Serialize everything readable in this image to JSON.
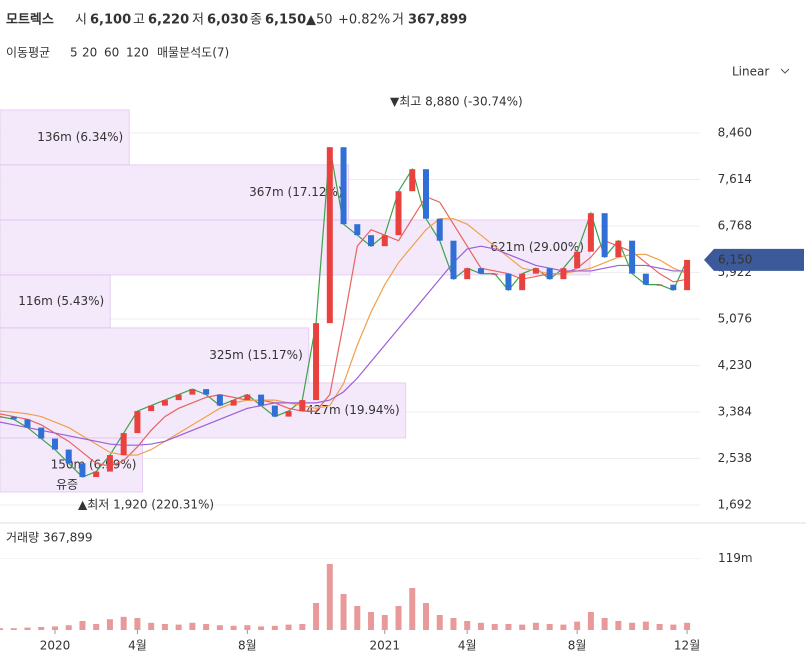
{
  "header": {
    "name": "모트렉스",
    "open_label": "시",
    "open": "6,100",
    "high_label": "고",
    "high": "6,220",
    "low_label": "저",
    "low": "6,030",
    "close_label": "종",
    "close": "6,150",
    "change": "▲50",
    "change_pct": "+0.82%",
    "volume_label": "거",
    "volume": "367,899",
    "ma_label": "이동평균",
    "profile_label": "매물분석도(7)",
    "scale_mode": "Linear"
  },
  "chart_data": [
    {
      "type": "candlestick",
      "x": [
        -2,
        -1.5,
        -1,
        -0.5,
        0,
        0.5,
        1,
        1.5,
        2,
        2.5,
        3,
        3.5,
        4,
        4.5,
        5,
        5.5,
        6,
        6.5,
        7,
        7.5,
        8,
        8.5,
        9,
        9.5,
        10,
        10.5,
        11,
        11.5,
        12,
        12.5,
        13,
        13.5,
        14,
        14.5,
        15,
        15.5,
        16,
        16.5,
        17,
        17.5,
        18,
        18.5,
        19,
        19.5,
        20,
        20.5,
        21,
        21.5,
        22,
        22.5,
        23
      ],
      "close": [
        3300,
        3250,
        3100,
        2900,
        2700,
        2450,
        2200,
        2300,
        2600,
        3000,
        3400,
        3500,
        3600,
        3700,
        3800,
        3700,
        3500,
        3600,
        3700,
        3500,
        3300,
        3400,
        3600,
        5000,
        8200,
        6800,
        6600,
        6400,
        6600,
        7400,
        7800,
        6900,
        6500,
        5800,
        6000,
        5900,
        5900,
        5600,
        5900,
        6000,
        5800,
        6000,
        6300,
        7000,
        6200,
        6500,
        5900,
        5700,
        5700,
        5600,
        6150
      ],
      "up_color": "#e8413e",
      "down_color": "#2f6fd6",
      "series": [
        {
          "name": "5",
          "color": "#3ca34a",
          "values": [
            3300,
            3250,
            3100,
            2900,
            2700,
            2450,
            2200,
            2300,
            2600,
            3000,
            3400,
            3500,
            3600,
            3700,
            3800,
            3700,
            3500,
            3600,
            3700,
            3500,
            3300,
            3400,
            3600,
            5000,
            8200,
            6800,
            6600,
            6400,
            6600,
            7400,
            7800,
            6900,
            6500,
            5800,
            6000,
            5900,
            5900,
            5600,
            5900,
            6000,
            5800,
            6000,
            6300,
            7000,
            6200,
            6500,
            5900,
            5700,
            5700,
            5600,
            6150
          ]
        },
        {
          "name": "20",
          "color": "#e8635d",
          "values": [
            3350,
            3300,
            3250,
            3150,
            3000,
            2850,
            2650,
            2450,
            2400,
            2500,
            2750,
            3050,
            3300,
            3450,
            3550,
            3650,
            3700,
            3650,
            3600,
            3600,
            3550,
            3450,
            3400,
            3400,
            3700,
            5000,
            6400,
            6700,
            6600,
            6500,
            6900,
            7300,
            7200,
            6800,
            6400,
            6000,
            5950,
            5900,
            5800,
            5850,
            5900,
            5900,
            6000,
            6200,
            6500,
            6400,
            6300,
            6100,
            5900,
            5750,
            5800
          ]
        },
        {
          "name": "60",
          "color": "#f0a04b",
          "values": [
            3400,
            3380,
            3350,
            3300,
            3200,
            3100,
            2950,
            2800,
            2650,
            2600,
            2600,
            2700,
            2850,
            3000,
            3150,
            3300,
            3450,
            3550,
            3600,
            3600,
            3600,
            3550,
            3500,
            3450,
            3500,
            3900,
            4600,
            5200,
            5700,
            6100,
            6400,
            6700,
            6900,
            6900,
            6800,
            6600,
            6400,
            6200,
            6000,
            5950,
            5900,
            5900,
            5950,
            6000,
            6100,
            6200,
            6250,
            6250,
            6150,
            6000,
            5900
          ]
        },
        {
          "name": "120",
          "color": "#9b5fd8",
          "values": [
            3200,
            3150,
            3100,
            3050,
            3000,
            2950,
            2900,
            2850,
            2800,
            2780,
            2780,
            2800,
            2850,
            2950,
            3050,
            3150,
            3250,
            3350,
            3450,
            3500,
            3550,
            3550,
            3550,
            3550,
            3600,
            3750,
            4000,
            4300,
            4600,
            4900,
            5200,
            5500,
            5800,
            6100,
            6350,
            6400,
            6350,
            6250,
            6150,
            6050,
            6000,
            5950,
            5950,
            5950,
            6000,
            6050,
            6050,
            6050,
            6000,
            5950,
            5950
          ]
        }
      ],
      "ylim": [
        1510,
        9150
      ],
      "yticks": [
        {
          "value": 1692,
          "label": "1,692"
        },
        {
          "value": 2538,
          "label": "2,538"
        },
        {
          "value": 3384,
          "label": "3,384"
        },
        {
          "value": 4230,
          "label": "4,230"
        },
        {
          "value": 5076,
          "label": "5,076"
        },
        {
          "value": 5922,
          "label": "5,922"
        },
        {
          "value": 6768,
          "label": "6,768"
        },
        {
          "value": 7614,
          "label": "7,614"
        },
        {
          "value": 8460,
          "label": "8,460"
        }
      ],
      "xlim": [
        -2,
        23.47
      ],
      "grid": true,
      "price_tag": {
        "value": 6150,
        "label": "6,150"
      },
      "annotations": {
        "high": "▼최고 8,880 (-30.74%)",
        "low": "▲최저 1,920 (220.31%)",
        "event": "유증"
      },
      "profile": {
        "color": "#f3e6fa",
        "edge": "#e2c6f0",
        "bands": [
          {
            "low": 7878,
            "high": 8878,
            "value": 136,
            "label": "136m (6.34%)"
          },
          {
            "low": 6877,
            "high": 7878,
            "value": 367,
            "label": "367m (17.12%)"
          },
          {
            "low": 5877,
            "high": 6877,
            "value": 621,
            "label": "621m (29.00%)"
          },
          {
            "low": 4913,
            "high": 5877,
            "value": 116,
            "label": "116m (5.43%)"
          },
          {
            "low": 3912,
            "high": 4913,
            "value": 325,
            "label": "325m (15.17%)"
          },
          {
            "low": 2912,
            "high": 3912,
            "value": 427,
            "label": "427m (19.94%)"
          },
          {
            "low": 1929,
            "high": 2912,
            "value": 150,
            "label": "150m (6.99%)"
          }
        ]
      }
    },
    {
      "type": "bar",
      "title": "거래량 367,899",
      "values": [
        3,
        3,
        4,
        5,
        6,
        8,
        15,
        10,
        18,
        22,
        20,
        12,
        10,
        9,
        12,
        10,
        8,
        7,
        8,
        6,
        7,
        9,
        10,
        45,
        110,
        60,
        40,
        30,
        25,
        40,
        70,
        45,
        25,
        20,
        15,
        12,
        10,
        10,
        9,
        12,
        10,
        9,
        14,
        30,
        20,
        15,
        12,
        14,
        10,
        9,
        12
      ],
      "color": "#e89a9a",
      "ylim": [
        0,
        130
      ],
      "yticks": [
        {
          "value": 119,
          "label": "119m"
        }
      ],
      "xticks": [
        {
          "value": 0,
          "label": "2020"
        },
        {
          "value": 3,
          "label": "4월"
        },
        {
          "value": 7,
          "label": "8월"
        },
        {
          "value": 12,
          "label": "2021"
        },
        {
          "value": 15,
          "label": "4월"
        },
        {
          "value": 19,
          "label": "8월"
        },
        {
          "value": 23,
          "label": "12월"
        }
      ]
    }
  ]
}
